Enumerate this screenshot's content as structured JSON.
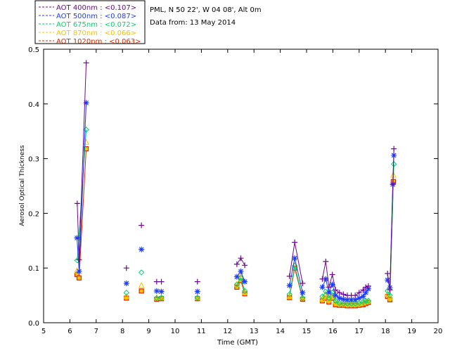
{
  "chart_data": {
    "type": "scatter",
    "site_lines": [
      "PML, N 50 22', W 04 08', Alt 0m",
      "Data from: 13 May 2014"
    ],
    "xlabel": "Time (GMT)",
    "ylabel": "Aerosol Optical Thickness",
    "xlim": [
      5,
      20
    ],
    "ylim": [
      0,
      0.5
    ],
    "xticks": [
      "5",
      "6",
      "7",
      "8",
      "9",
      "10",
      "11",
      "12",
      "13",
      "14",
      "15",
      "16",
      "17",
      "18",
      "19",
      "20"
    ],
    "yticks": [
      "0.0",
      "0.1",
      "0.2",
      "0.3",
      "0.4",
      "0.5"
    ],
    "grid": false,
    "legend_position": "top-left",
    "series": [
      {
        "name": "AOT  400nm : <0.107>",
        "color": "#6a0a8c",
        "marker": "plus",
        "x": [
          6.28,
          6.35,
          6.62,
          8.15,
          8.72,
          9.3,
          9.48,
          10.85,
          12.35,
          12.5,
          12.65,
          14.35,
          14.55,
          14.85,
          15.6,
          15.73,
          15.85,
          15.98,
          16.1,
          16.25,
          16.4,
          16.55,
          16.7,
          16.85,
          17.0,
          17.15,
          17.25,
          17.35,
          18.08,
          18.17,
          18.28,
          18.32
        ],
        "y": [
          0.218,
          0.115,
          0.475,
          0.1,
          0.178,
          0.075,
          0.075,
          0.075,
          0.107,
          0.118,
          0.105,
          0.085,
          0.147,
          0.072,
          0.08,
          0.112,
          0.065,
          0.088,
          0.06,
          0.055,
          0.052,
          0.05,
          0.05,
          0.05,
          0.055,
          0.06,
          0.065,
          0.067,
          0.09,
          0.06,
          0.253,
          0.318
        ]
      },
      {
        "name": "AOT  500nm : <0.087>",
        "color": "#1a3cff",
        "marker": "star",
        "x": [
          6.27,
          6.35,
          6.62,
          8.15,
          8.72,
          9.3,
          9.48,
          10.85,
          12.35,
          12.5,
          12.65,
          14.35,
          14.55,
          14.85,
          15.6,
          15.73,
          15.85,
          15.98,
          16.1,
          16.25,
          16.4,
          16.55,
          16.7,
          16.85,
          17.0,
          17.15,
          17.25,
          17.35,
          18.08,
          18.17,
          18.28,
          18.32
        ],
        "y": [
          0.155,
          0.094,
          0.402,
          0.072,
          0.134,
          0.058,
          0.057,
          0.057,
          0.084,
          0.094,
          0.075,
          0.068,
          0.118,
          0.055,
          0.065,
          0.08,
          0.055,
          0.07,
          0.05,
          0.045,
          0.043,
          0.042,
          0.042,
          0.042,
          0.045,
          0.048,
          0.055,
          0.062,
          0.078,
          0.064,
          0.253,
          0.306
        ]
      },
      {
        "name": "AOT  675nm : <0.072>",
        "color": "#00d070",
        "marker": "diamond",
        "x": [
          6.28,
          6.62,
          8.15,
          8.72,
          9.3,
          9.48,
          10.85,
          12.35,
          12.5,
          12.65,
          14.35,
          14.55,
          14.85,
          15.6,
          15.73,
          15.85,
          15.98,
          16.1,
          16.25,
          16.4,
          16.55,
          16.7,
          16.85,
          17.0,
          17.15,
          17.25,
          17.35,
          18.08,
          18.17,
          18.32
        ],
        "y": [
          0.114,
          0.353,
          0.055,
          0.092,
          0.045,
          0.046,
          0.046,
          0.07,
          0.082,
          0.058,
          0.052,
          0.104,
          0.045,
          0.048,
          0.057,
          0.045,
          0.055,
          0.04,
          0.036,
          0.035,
          0.035,
          0.035,
          0.035,
          0.036,
          0.038,
          0.04,
          0.04,
          0.058,
          0.05,
          0.29
        ]
      },
      {
        "name": "AOT  870nm : <0.066>",
        "color": "#f5c400",
        "marker": "triangle",
        "x": [
          6.27,
          6.62,
          8.15,
          8.72,
          9.3,
          9.48,
          10.85,
          12.35,
          12.5,
          12.65,
          14.35,
          14.55,
          14.85,
          15.6,
          15.73,
          15.85,
          15.98,
          16.1,
          16.25,
          16.4,
          16.55,
          16.7,
          16.85,
          17.0,
          17.15,
          17.25,
          17.35,
          18.08,
          18.17,
          18.3
        ],
        "y": [
          0.095,
          0.33,
          0.048,
          0.068,
          0.046,
          0.046,
          0.046,
          0.07,
          0.085,
          0.055,
          0.048,
          0.105,
          0.046,
          0.043,
          0.05,
          0.042,
          0.05,
          0.038,
          0.035,
          0.035,
          0.034,
          0.034,
          0.034,
          0.035,
          0.036,
          0.038,
          0.04,
          0.052,
          0.046,
          0.27
        ]
      },
      {
        "name": "AOT 1020nm : <0.063>",
        "color": "#d42a00",
        "marker": "square",
        "x": [
          6.27,
          6.35,
          6.62,
          8.15,
          8.72,
          9.3,
          9.48,
          10.85,
          12.35,
          12.5,
          12.65,
          14.35,
          14.55,
          14.85,
          15.6,
          15.73,
          15.85,
          15.98,
          16.1,
          16.25,
          16.4,
          16.55,
          16.7,
          16.85,
          17.0,
          17.15,
          17.25,
          17.35,
          18.08,
          18.17,
          18.3
        ],
        "y": [
          0.088,
          0.082,
          0.318,
          0.045,
          0.058,
          0.043,
          0.044,
          0.044,
          0.065,
          0.077,
          0.053,
          0.046,
          0.1,
          0.043,
          0.04,
          0.045,
          0.038,
          0.045,
          0.033,
          0.032,
          0.032,
          0.031,
          0.031,
          0.031,
          0.032,
          0.033,
          0.035,
          0.037,
          0.048,
          0.042,
          0.258
        ]
      }
    ]
  }
}
